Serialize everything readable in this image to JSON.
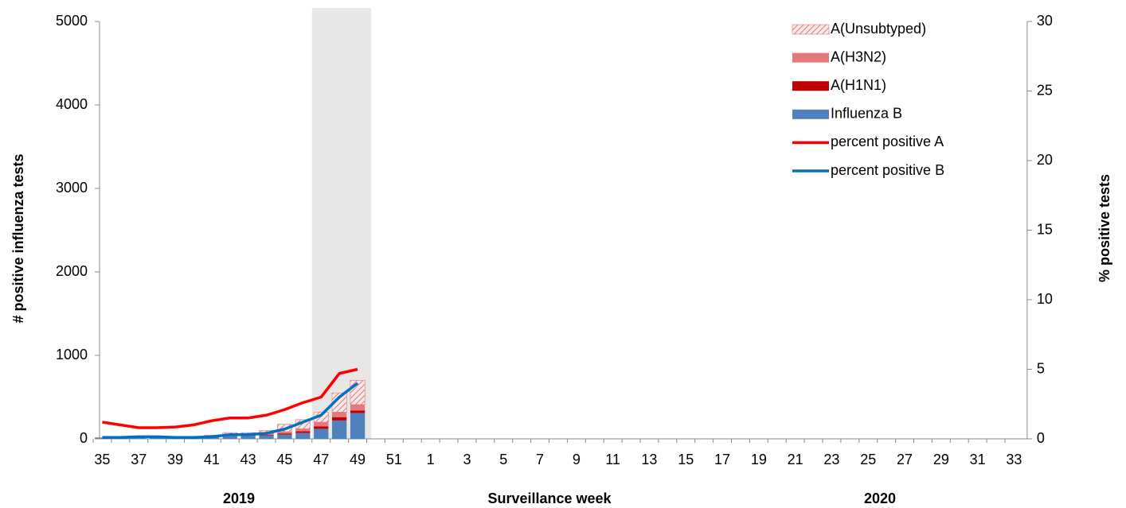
{
  "chart_data": {
    "type": "bar",
    "x_label": "Surveillance week",
    "y_label": "# positive influenza tests",
    "y2_label": "% positive tests",
    "annotations": [
      "2019",
      "2020"
    ],
    "categories": [
      "35",
      null,
      "37",
      null,
      "39",
      null,
      "41",
      null,
      "43",
      null,
      "45",
      null,
      "47",
      null,
      "49",
      null,
      "51",
      null,
      "1",
      null,
      "3",
      null,
      "5",
      null,
      "7",
      null,
      "9",
      null,
      "11",
      null,
      "13",
      null,
      "15",
      null,
      "17",
      null,
      "19",
      null,
      "21",
      null,
      "23",
      null,
      "25",
      null,
      "27",
      null,
      "29",
      null,
      "31",
      null,
      "33"
    ],
    "series": [
      {
        "name": "A(Unsubtyped)",
        "type": "bar",
        "color": "#d97b7b",
        "hatch": true,
        "values": [
          5,
          5,
          5,
          5,
          5,
          10,
          15,
          20,
          20,
          35,
          90,
          110,
          120,
          230,
          290,
          null,
          null,
          null,
          null,
          null,
          null,
          null,
          null,
          null,
          null,
          null,
          null,
          null,
          null,
          null,
          null,
          null,
          null,
          null,
          null,
          null,
          null,
          null,
          null,
          null,
          null,
          null,
          null,
          null,
          null,
          null,
          null,
          null,
          null,
          null,
          null
        ]
      },
      {
        "name": "A(H3N2)",
        "type": "bar",
        "color": "#e8797a",
        "values": [
          0,
          0,
          0,
          0,
          0,
          0,
          5,
          10,
          10,
          15,
          20,
          30,
          50,
          60,
          70,
          null,
          null,
          null,
          null,
          null,
          null,
          null,
          null,
          null,
          null,
          null,
          null,
          null,
          null,
          null,
          null,
          null,
          null,
          null,
          null,
          null,
          null,
          null,
          null,
          null,
          null,
          null,
          null,
          null,
          null,
          null,
          null,
          null,
          null,
          null,
          null
        ]
      },
      {
        "name": "A(H1N1)",
        "type": "bar",
        "color": "#c00000",
        "values": [
          0,
          0,
          0,
          0,
          0,
          0,
          0,
          5,
          5,
          10,
          15,
          20,
          30,
          40,
          30,
          null,
          null,
          null,
          null,
          null,
          null,
          null,
          null,
          null,
          null,
          null,
          null,
          null,
          null,
          null,
          null,
          null,
          null,
          null,
          null,
          null,
          null,
          null,
          null,
          null,
          null,
          null,
          null,
          null,
          null,
          null,
          null,
          null,
          null,
          null,
          null
        ]
      },
      {
        "name": "Influenza B",
        "type": "bar",
        "color": "#4f81bd",
        "values": [
          10,
          10,
          20,
          20,
          10,
          20,
          25,
          40,
          40,
          40,
          50,
          70,
          120,
          220,
          310,
          null,
          null,
          null,
          null,
          null,
          null,
          null,
          null,
          null,
          null,
          null,
          null,
          null,
          null,
          null,
          null,
          null,
          null,
          null,
          null,
          null,
          null,
          null,
          null,
          null,
          null,
          null,
          null,
          null,
          null,
          null,
          null,
          null,
          null,
          null,
          null
        ]
      },
      {
        "name": "percent positive A",
        "type": "line",
        "axis": "y2",
        "color": "#ff0000",
        "values": [
          1.2,
          1.0,
          0.8,
          0.8,
          0.85,
          1.0,
          1.3,
          1.5,
          1.5,
          1.7,
          2.1,
          2.6,
          3.0,
          4.7,
          5.0,
          null,
          null,
          null,
          null,
          null,
          null,
          null,
          null,
          null,
          null,
          null,
          null,
          null,
          null,
          null,
          null,
          null,
          null,
          null,
          null,
          null,
          null,
          null,
          null,
          null,
          null,
          null,
          null,
          null,
          null,
          null,
          null,
          null,
          null,
          null,
          null
        ]
      },
      {
        "name": "percent positive B",
        "type": "line",
        "axis": "y2",
        "color": "#0070c0",
        "values": [
          0.1,
          0.1,
          0.15,
          0.15,
          0.1,
          0.1,
          0.15,
          0.3,
          0.3,
          0.4,
          0.7,
          1.2,
          1.7,
          3.0,
          4.0,
          null,
          null,
          null,
          null,
          null,
          null,
          null,
          null,
          null,
          null,
          null,
          null,
          null,
          null,
          null,
          null,
          null,
          null,
          null,
          null,
          null,
          null,
          null,
          null,
          null,
          null,
          null,
          null,
          null,
          null,
          null,
          null,
          null,
          null,
          null,
          null
        ]
      }
    ],
    "ylim": [
      0,
      5000
    ],
    "yticks": [
      0,
      1000,
      2000,
      3000,
      4000,
      5000
    ],
    "y2lim": [
      0,
      30
    ],
    "y2ticks": [
      0,
      5,
      10,
      15,
      20,
      25,
      30
    ],
    "grid": false,
    "legend": "top-right"
  }
}
